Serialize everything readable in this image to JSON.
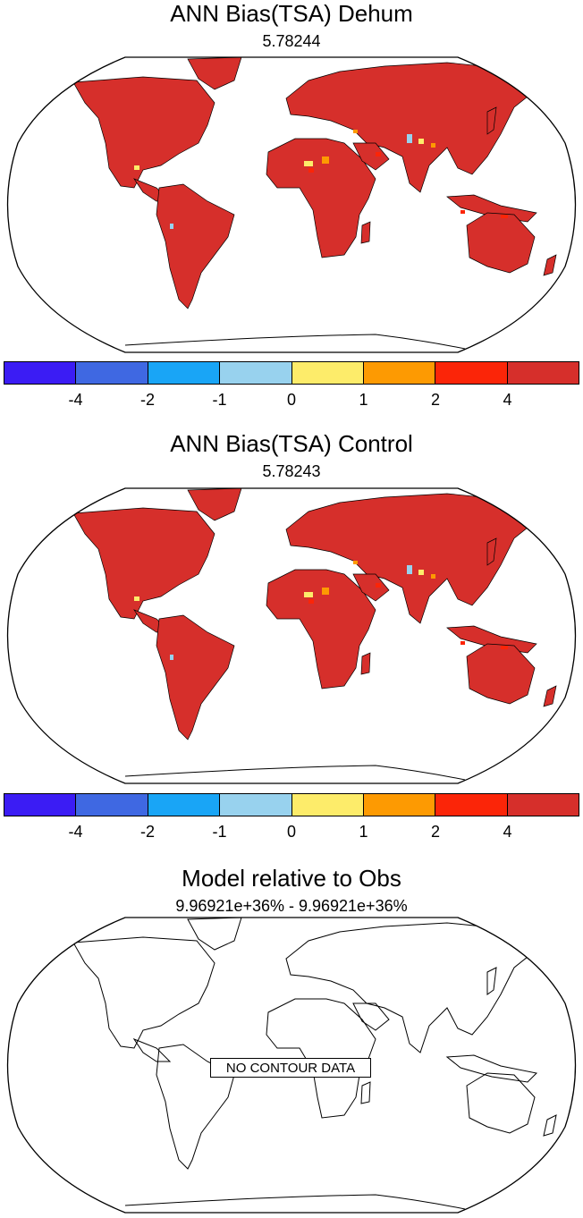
{
  "panels": [
    {
      "title": "ANN Bias(TSA) Dehum",
      "subtitle": "5.78244"
    },
    {
      "title": "ANN Bias(TSA) Control",
      "subtitle": "5.78243"
    },
    {
      "title": "Model relative to Obs",
      "subtitle": "9.96921e+36% - 9.96921e+36%",
      "overlay": "NO CONTOUR DATA"
    }
  ],
  "colorbar": {
    "colors": [
      "#3b1cf4",
      "#3f68e2",
      "#19a5f6",
      "#98d2ee",
      "#fdec6a",
      "#fd9a02",
      "#fb2508",
      "#d62f2b"
    ],
    "labels": [
      "-4",
      "-2",
      "-1",
      "0",
      "1",
      "2",
      "4"
    ]
  },
  "land_color": "#d62f2b"
}
